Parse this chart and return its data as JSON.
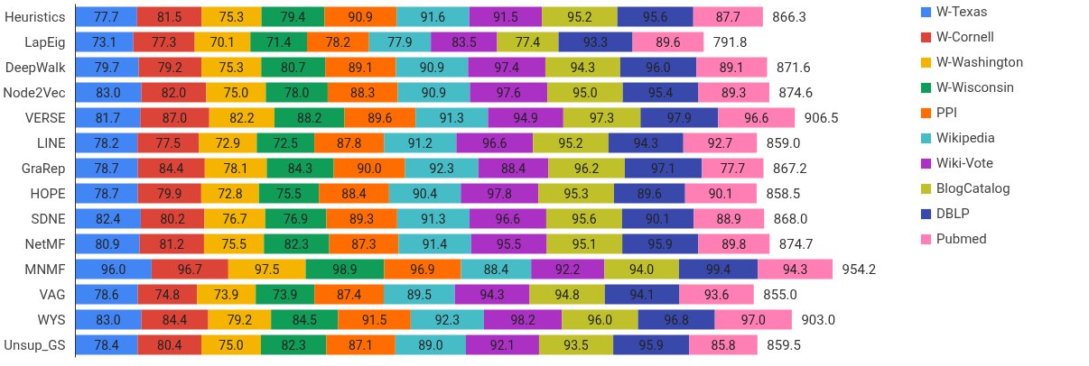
{
  "chart_data": {
    "type": "bar",
    "orientation": "horizontal",
    "stacked": true,
    "legend": "top right",
    "grid": false,
    "tick_labels": "y",
    "categories": [
      "Heuristics",
      "LapEig",
      "DeepWalk",
      "Node2Vec",
      "VERSE",
      "LINE",
      "GraRep",
      "HOPE",
      "SDNE",
      "NetMF",
      "MNMF",
      "VAG",
      "WYS",
      "Unsup_GS"
    ],
    "series": [
      {
        "name": "W-Texas",
        "color": "#4285f4",
        "values": [
          77.7,
          73.1,
          79.7,
          83.0,
          81.7,
          78.2,
          78.7,
          78.7,
          82.4,
          80.9,
          96.0,
          78.6,
          83.0,
          78.4
        ],
        "value_labels": [
          "77.7",
          "73.1",
          "79.7",
          "83.0",
          "81.7",
          "78.2",
          "78.7",
          "78.7",
          "82.4",
          "80.9",
          "96.0",
          "78.6",
          "83.0",
          "78.4"
        ]
      },
      {
        "name": "W-Cornell",
        "color": "#db4437",
        "values": [
          81.5,
          77.3,
          79.2,
          82.0,
          87.0,
          77.5,
          84.4,
          79.9,
          80.2,
          81.2,
          96.7,
          74.8,
          84.4,
          80.4
        ],
        "value_labels": [
          "81.5",
          "77.3",
          "79.2",
          "82.0",
          "87.0",
          "77.5",
          "84.4",
          "79.9",
          "80.2",
          "81.2",
          "96.7",
          "74.8",
          "84.4",
          "80.4"
        ]
      },
      {
        "name": "W-Washington",
        "color": "#f4b400",
        "values": [
          75.3,
          70.1,
          75.3,
          75.0,
          82.2,
          72.9,
          78.1,
          72.8,
          76.7,
          75.5,
          97.5,
          73.9,
          79.2,
          75.0
        ],
        "value_labels": [
          "75.3",
          "70.1",
          "75.3",
          "75.0",
          "82.2",
          "72.9",
          "78.1",
          "72.8",
          "76.7",
          "75.5",
          "97.5",
          "73.9",
          "79.2",
          "75.0"
        ]
      },
      {
        "name": "W-Wisconsin",
        "color": "#0f9d58",
        "values": [
          79.4,
          71.4,
          80.7,
          78.0,
          88.2,
          72.5,
          84.3,
          75.5,
          76.9,
          82.3,
          98.9,
          73.9,
          84.5,
          82.3
        ],
        "value_labels": [
          "79.4",
          "71.4",
          "80.7",
          "78.0",
          "88.2",
          "72.5",
          "84.3",
          "75.5",
          "76.9",
          "82.3",
          "98.9",
          "73.9",
          "84.5",
          "82.3"
        ]
      },
      {
        "name": "PPI",
        "color": "#ff6d00",
        "values": [
          90.9,
          78.2,
          89.1,
          88.3,
          89.6,
          87.8,
          90.0,
          88.4,
          89.3,
          87.3,
          96.9,
          87.4,
          91.5,
          87.1
        ],
        "value_labels": [
          "90.9",
          "78.2",
          "89.1",
          "88.3",
          "89.6",
          "87.8",
          "90.0",
          "88.4",
          "89.3",
          "87.3",
          "96.9",
          "87.4",
          "91.5",
          "87.1"
        ]
      },
      {
        "name": "Wikipedia",
        "color": "#46bdc6",
        "values": [
          91.6,
          77.9,
          90.9,
          90.9,
          91.3,
          91.2,
          92.3,
          90.4,
          91.3,
          91.4,
          88.4,
          89.5,
          92.3,
          89.0
        ],
        "value_labels": [
          "91.6",
          "77.9",
          "90.9",
          "90.9",
          "91.3",
          "91.2",
          "92.3",
          "90.4",
          "91.3",
          "91.4",
          "88.4",
          "89.5",
          "92.3",
          "89.0"
        ]
      },
      {
        "name": "Wiki-Vote",
        "color": "#ab30c4",
        "values": [
          91.5,
          83.5,
          97.4,
          97.6,
          94.9,
          96.6,
          88.4,
          97.8,
          96.6,
          95.5,
          92.2,
          94.3,
          98.2,
          92.1
        ],
        "value_labels": [
          "91.5",
          "83.5",
          "97.4",
          "97.6",
          "94.9",
          "96.6",
          "88.4",
          "97.8",
          "96.6",
          "95.5",
          "92.2",
          "94.3",
          "98.2",
          "92.1"
        ]
      },
      {
        "name": "BlogCatalog",
        "color": "#c0c02a",
        "values": [
          95.2,
          77.4,
          94.3,
          95.0,
          97.3,
          95.2,
          96.2,
          95.3,
          95.6,
          95.1,
          94.0,
          94.8,
          96.0,
          93.5
        ],
        "value_labels": [
          "95.2",
          "77.4",
          "94.3",
          "95.0",
          "97.3",
          "95.2",
          "96.2",
          "95.3",
          "95.6",
          "95.1",
          "94.0",
          "94.8",
          "96.0",
          "93.5"
        ]
      },
      {
        "name": "DBLP",
        "color": "#3949ab",
        "values": [
          95.6,
          93.3,
          96.0,
          95.4,
          97.9,
          94.3,
          97.1,
          89.6,
          90.1,
          95.9,
          99.4,
          94.1,
          96.8,
          95.9
        ],
        "value_labels": [
          "95.6",
          "93.3",
          "96.0",
          "95.4",
          "97.9",
          "94.3",
          "97.1",
          "89.6",
          "90.1",
          "95.9",
          "99.4",
          "94.1",
          "96.8",
          "95.9"
        ]
      },
      {
        "name": "Pubmed",
        "color": "#ff7eb3",
        "values": [
          87.7,
          89.6,
          89.1,
          89.3,
          96.6,
          92.7,
          77.7,
          90.1,
          88.9,
          89.8,
          94.3,
          93.6,
          97.0,
          85.8
        ],
        "value_labels": [
          "87.7",
          "89.6",
          "89.1",
          "89.3",
          "96.6",
          "92.7",
          "77.7",
          "90.1",
          "88.9",
          "89.8",
          "94.3",
          "93.6",
          "97.0",
          "85.8"
        ]
      }
    ],
    "totals": [
      "866.3",
      "791.8",
      "871.6",
      "874.6",
      "906.5",
      "859.0",
      "867.2",
      "858.5",
      "868.0",
      "874.7",
      "954.2",
      "855.0",
      "903.0",
      "859.5"
    ]
  }
}
